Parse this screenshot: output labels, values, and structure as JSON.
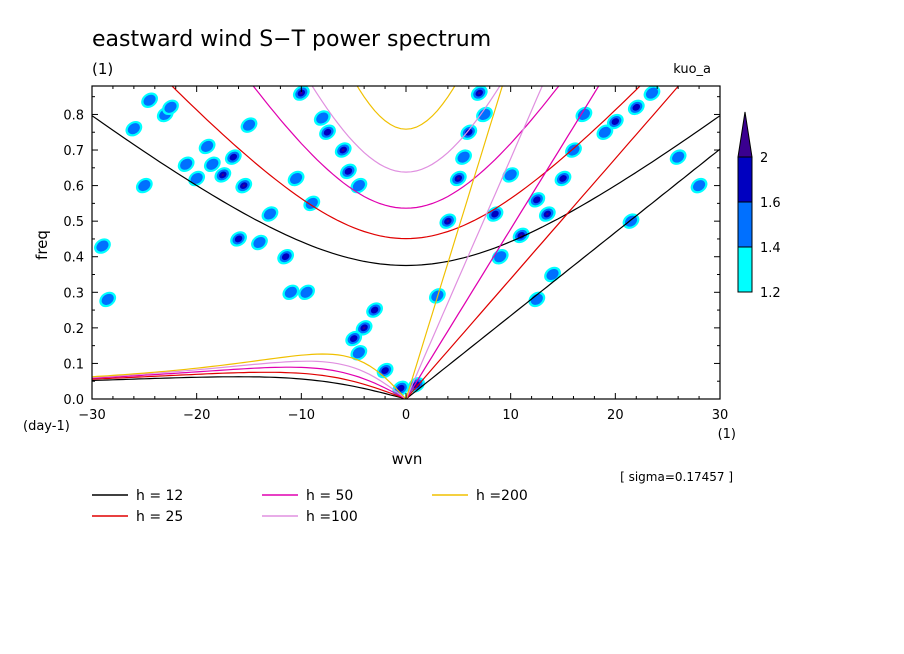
{
  "chart_data": {
    "type": "heatmap",
    "title": "eastward wind S−T power spectrum",
    "subtitle_left": "(1)",
    "subtitle_right": "kuo_a",
    "xlabel": "wvn",
    "ylabel": "freq",
    "x_unit": "(1)",
    "y_unit": "(day-1)",
    "xlim": [
      -30,
      30
    ],
    "ylim": [
      0,
      0.88
    ],
    "x_ticks": [
      -30,
      -20,
      -10,
      0,
      10,
      20,
      30
    ],
    "x_tick_labels": [
      "−30",
      "−20",
      "−10",
      "0",
      "10",
      "20",
      "30"
    ],
    "y_ticks": [
      0,
      0.1,
      0.2,
      0.3,
      0.4,
      0.5,
      0.6,
      0.7,
      0.8
    ],
    "y_tick_labels": [
      "0.0",
      "0.1",
      "0.2",
      "0.3",
      "0.4",
      "0.5",
      "0.6",
      "0.7",
      "0.8"
    ],
    "annotation": "[ sigma=0.17457 ]",
    "colorbar": {
      "levels": [
        1.2,
        1.4,
        1.6,
        2
      ],
      "level_labels": [
        "1.2",
        "1.4",
        "1.6",
        "2"
      ],
      "colors": [
        "#00ffff",
        "#0070ff",
        "#0000c0",
        "#3a0090"
      ]
    },
    "dispersion_curves": [
      {
        "label": "h = 12",
        "h": 12,
        "color": "#000000"
      },
      {
        "label": "h = 25",
        "h": 25,
        "color": "#e00000"
      },
      {
        "label": "h = 50",
        "h": 50,
        "color": "#e000b0"
      },
      {
        "label": "h =100",
        "h": 100,
        "color": "#e090e0"
      },
      {
        "label": "h =200",
        "h": 200,
        "color": "#f0c000"
      }
    ],
    "blobs": [
      {
        "k": -29.0,
        "f": 0.43,
        "level": 1
      },
      {
        "k": -28.5,
        "f": 0.28,
        "level": 1
      },
      {
        "k": -26.0,
        "f": 0.76,
        "level": 1
      },
      {
        "k": -24.5,
        "f": 0.84,
        "level": 1
      },
      {
        "k": -23.0,
        "f": 0.8,
        "level": 1
      },
      {
        "k": -22.5,
        "f": 0.82,
        "level": 1
      },
      {
        "k": -21.0,
        "f": 0.66,
        "level": 1
      },
      {
        "k": -20.0,
        "f": 0.62,
        "level": 1
      },
      {
        "k": -19.0,
        "f": 0.71,
        "level": 1
      },
      {
        "k": -18.5,
        "f": 0.66,
        "level": 1
      },
      {
        "k": -17.5,
        "f": 0.63,
        "level": 3
      },
      {
        "k": -16.5,
        "f": 0.68,
        "level": 2
      },
      {
        "k": -15.5,
        "f": 0.6,
        "level": 3
      },
      {
        "k": -15.0,
        "f": 0.77,
        "level": 1
      },
      {
        "k": -14.0,
        "f": 0.44,
        "level": 1
      },
      {
        "k": -16.0,
        "f": 0.45,
        "level": 2
      },
      {
        "k": -11.5,
        "f": 0.4,
        "level": 2
      },
      {
        "k": -10.5,
        "f": 0.62,
        "level": 1
      },
      {
        "k": -11.0,
        "f": 0.3,
        "level": 1
      },
      {
        "k": -9.0,
        "f": 0.55,
        "level": 1
      },
      {
        "k": -9.5,
        "f": 0.3,
        "level": 1
      },
      {
        "k": -10.0,
        "f": 0.86,
        "level": 3
      },
      {
        "k": -8.0,
        "f": 0.79,
        "level": 1
      },
      {
        "k": -7.5,
        "f": 0.75,
        "level": 2
      },
      {
        "k": -6.0,
        "f": 0.7,
        "level": 3
      },
      {
        "k": -5.5,
        "f": 0.64,
        "level": 2
      },
      {
        "k": -4.5,
        "f": 0.6,
        "level": 1
      },
      {
        "k": -4.0,
        "f": 0.2,
        "level": 3
      },
      {
        "k": -3.0,
        "f": 0.25,
        "level": 2
      },
      {
        "k": -5.0,
        "f": 0.17,
        "level": 2
      },
      {
        "k": -4.5,
        "f": 0.13,
        "level": 1
      },
      {
        "k": -2.0,
        "f": 0.08,
        "level": 2
      },
      {
        "k": -0.5,
        "f": 0.03,
        "level": 2
      },
      {
        "k": 1.0,
        "f": 0.04,
        "level": 3
      },
      {
        "k": 3.0,
        "f": 0.29,
        "level": 1
      },
      {
        "k": 4.0,
        "f": 0.5,
        "level": 3
      },
      {
        "k": 5.0,
        "f": 0.62,
        "level": 3
      },
      {
        "k": 5.5,
        "f": 0.68,
        "level": 1
      },
      {
        "k": 6.0,
        "f": 0.75,
        "level": 2
      },
      {
        "k": 7.0,
        "f": 0.86,
        "level": 3
      },
      {
        "k": 7.5,
        "f": 0.8,
        "level": 1
      },
      {
        "k": 8.5,
        "f": 0.52,
        "level": 2
      },
      {
        "k": 9.0,
        "f": 0.4,
        "level": 1
      },
      {
        "k": 10.0,
        "f": 0.63,
        "level": 1
      },
      {
        "k": 11.0,
        "f": 0.46,
        "level": 3
      },
      {
        "k": 12.5,
        "f": 0.56,
        "level": 2
      },
      {
        "k": 13.5,
        "f": 0.52,
        "level": 3
      },
      {
        "k": 15.0,
        "f": 0.62,
        "level": 2
      },
      {
        "k": 16.0,
        "f": 0.7,
        "level": 1
      },
      {
        "k": 17.0,
        "f": 0.8,
        "level": 1
      },
      {
        "k": 19.0,
        "f": 0.75,
        "level": 1
      },
      {
        "k": 20.0,
        "f": 0.78,
        "level": 2
      },
      {
        "k": 22.0,
        "f": 0.82,
        "level": 2
      },
      {
        "k": 23.5,
        "f": 0.86,
        "level": 1
      },
      {
        "k": 21.5,
        "f": 0.5,
        "level": 1
      },
      {
        "k": 28.0,
        "f": 0.6,
        "level": 1
      },
      {
        "k": 26.0,
        "f": 0.68,
        "level": 1
      },
      {
        "k": 12.5,
        "f": 0.28,
        "level": 1
      },
      {
        "k": -25.0,
        "f": 0.6,
        "level": 1
      },
      {
        "k": -13.0,
        "f": 0.52,
        "level": 1
      },
      {
        "k": 14.0,
        "f": 0.35,
        "level": 1
      }
    ]
  }
}
